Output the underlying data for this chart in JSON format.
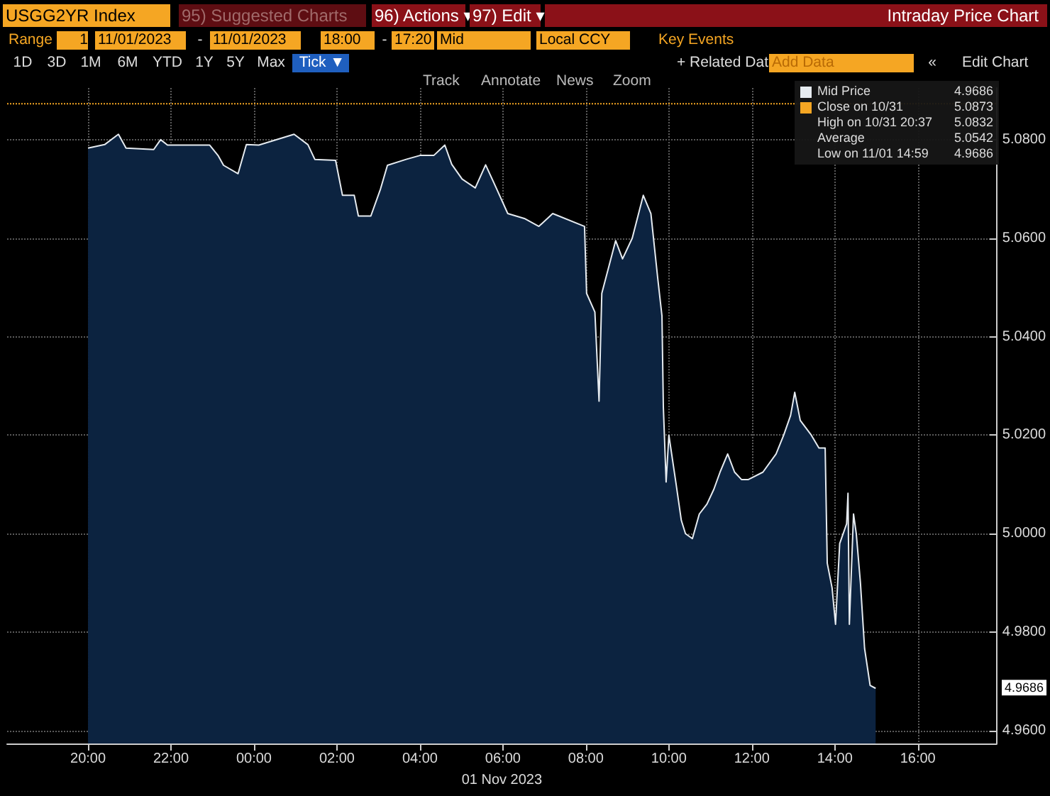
{
  "chart_data": {
    "type": "area",
    "title": "Intraday Price Chart",
    "xlabel": "01 Nov 2023",
    "x": [
      "2023-10-31T20:00",
      "2023-10-31T20:24",
      "2023-10-31T20:44",
      "2023-10-31T20:55",
      "2023-10-31T21:35",
      "2023-10-31T21:45",
      "2023-10-31T21:55",
      "2023-10-31T22:56",
      "2023-10-31T23:08",
      "2023-10-31T23:16",
      "2023-10-31T23:37",
      "2023-10-31T23:49",
      "2023-11-01T00:07",
      "2023-11-01T00:58",
      "2023-11-01T01:18",
      "2023-11-01T01:28",
      "2023-11-01T01:58",
      "2023-11-01T02:08",
      "2023-11-01T02:25",
      "2023-11-01T02:31",
      "2023-11-01T02:49",
      "2023-11-01T03:03",
      "2023-11-01T03:13",
      "2023-11-01T03:40",
      "2023-11-01T04:00",
      "2023-11-01T04:20",
      "2023-11-01T04:36",
      "2023-11-01T04:46",
      "2023-11-01T05:01",
      "2023-11-01T05:20",
      "2023-11-01T05:35",
      "2023-11-01T05:51",
      "2023-11-01T06:07",
      "2023-11-01T06:31",
      "2023-11-01T06:52",
      "2023-11-01T07:12",
      "2023-11-01T07:58",
      "2023-11-01T08:01",
      "2023-11-01T08:13",
      "2023-11-01T08:19",
      "2023-11-01T08:23",
      "2023-11-01T08:43",
      "2023-11-01T08:53",
      "2023-11-01T09:07",
      "2023-11-01T09:23",
      "2023-11-01T09:34",
      "2023-11-01T09:44",
      "2023-11-01T09:50",
      "2023-11-01T09:52",
      "2023-11-01T09:56",
      "2023-11-01T10:00",
      "2023-11-01T10:10",
      "2023-11-01T10:18",
      "2023-11-01T10:24",
      "2023-11-01T10:34",
      "2023-11-01T10:44",
      "2023-11-01T10:55",
      "2023-11-01T11:05",
      "2023-11-01T11:14",
      "2023-11-01T11:25",
      "2023-11-01T11:35",
      "2023-11-01T11:45",
      "2023-11-01T11:55",
      "2023-11-01T12:16",
      "2023-11-01T12:35",
      "2023-11-01T12:46",
      "2023-11-01T12:56",
      "2023-11-01T13:02",
      "2023-11-01T13:10",
      "2023-11-01T13:26",
      "2023-11-01T13:37",
      "2023-11-01T13:46",
      "2023-11-01T13:49",
      "2023-11-01T13:56",
      "2023-11-01T14:01",
      "2023-11-01T14:07",
      "2023-11-01T14:17",
      "2023-11-01T14:19",
      "2023-11-01T14:21",
      "2023-11-01T14:27",
      "2023-11-01T14:31",
      "2023-11-01T14:37",
      "2023-11-01T14:43",
      "2023-11-01T14:51",
      "2023-11-01T14:59"
    ],
    "series": [
      {
        "name": "Mid Price",
        "color": "#e6ebf0",
        "values": [
          5.0783,
          5.079,
          5.0811,
          5.0783,
          5.078,
          5.08,
          5.0789,
          5.0789,
          5.0768,
          5.0748,
          5.0731,
          5.079,
          5.0789,
          5.0811,
          5.079,
          5.076,
          5.0758,
          5.0687,
          5.0687,
          5.0645,
          5.0645,
          5.07,
          5.0748,
          5.076,
          5.0768,
          5.0768,
          5.0789,
          5.075,
          5.072,
          5.0702,
          5.0749,
          5.07,
          5.065,
          5.064,
          5.0624,
          5.065,
          5.0624,
          5.0488,
          5.045,
          5.0269,
          5.0488,
          5.0595,
          5.0558,
          5.06,
          5.0687,
          5.065,
          5.0517,
          5.0442,
          5.0257,
          5.0105,
          5.02,
          5.0105,
          5.0027,
          5.0,
          4.999,
          5.004,
          5.006,
          5.009,
          5.0125,
          5.0162,
          5.0125,
          5.011,
          5.011,
          5.0125,
          5.0162,
          5.02,
          5.024,
          5.0287,
          5.023,
          5.02,
          5.0174,
          5.0174,
          4.994,
          4.989,
          4.9816,
          4.998,
          5.002,
          5.0082,
          4.9816,
          5.004,
          5.0,
          4.99,
          4.9767,
          4.9692,
          4.9686
        ]
      }
    ],
    "xlim": [
      "2023-10-31T18:03",
      "2023-11-01T17:54"
    ],
    "xticks": [
      {
        "value": "2023-10-31T20:00",
        "label": "20:00"
      },
      {
        "value": "2023-10-31T22:00",
        "label": "22:00"
      },
      {
        "value": "2023-11-01T00:00",
        "label": "00:00"
      },
      {
        "value": "2023-11-01T02:00",
        "label": "02:00"
      },
      {
        "value": "2023-11-01T04:00",
        "label": "04:00"
      },
      {
        "value": "2023-11-01T06:00",
        "label": "06:00"
      },
      {
        "value": "2023-11-01T08:00",
        "label": "08:00"
      },
      {
        "value": "2023-11-01T10:00",
        "label": "10:00"
      },
      {
        "value": "2023-11-01T12:00",
        "label": "12:00"
      },
      {
        "value": "2023-11-01T14:00",
        "label": "14:00"
      },
      {
        "value": "2023-11-01T16:00",
        "label": "16:00"
      }
    ],
    "ylim": [
      4.9574,
      5.0905
    ],
    "yticks": [
      {
        "value": 4.96,
        "label": "4.9600"
      },
      {
        "value": 4.98,
        "label": "4.9800"
      },
      {
        "value": 5.0,
        "label": "5.0000"
      },
      {
        "value": 5.02,
        "label": "5.0200"
      },
      {
        "value": 5.04,
        "label": "5.0400"
      },
      {
        "value": 5.06,
        "label": "5.0600"
      },
      {
        "value": 5.08,
        "label": "5.0800"
      }
    ],
    "ref_lines": [
      {
        "axis": "y",
        "value": 5.0873,
        "label": "Close on 10/31",
        "color": "#f5a623",
        "line_style": "dotted"
      }
    ],
    "grid": true,
    "legend": "top right",
    "marker": "none",
    "annotations": [
      "USGG2YR Index",
      "95) Suggested Charts",
      "96) Actions ▾",
      "97) Edit ▾",
      "Range",
      "1",
      "11/01/2023",
      "-",
      "11/01/2023",
      "18:00",
      "-",
      "17:20",
      "Mid",
      "Local CCY",
      "Key Events",
      "1D",
      "3D",
      "1M",
      "6M",
      "YTD",
      "1Y",
      "5Y",
      "Max",
      "Tick ▼",
      "+ Related Dat",
      "Add Data",
      "«",
      "Edit Chart",
      "Track",
      "Annotate",
      "News",
      "Zoom",
      "4.9686",
      "5.0873",
      "High on 10/31 20:37",
      "5.0832",
      "Average",
      "5.0542",
      "Low on 11/01 14:59",
      "4.9686",
      "4.9686"
    ]
  }
}
